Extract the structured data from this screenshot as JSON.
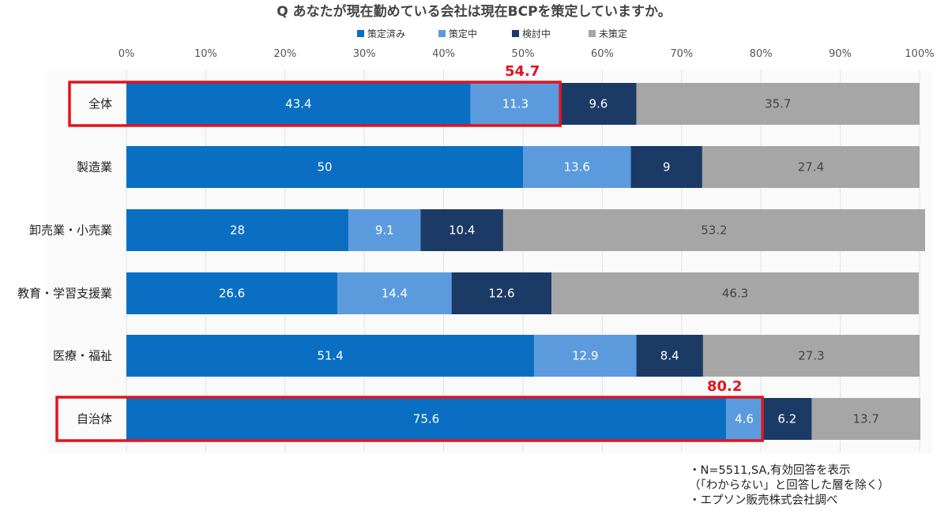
{
  "title": "Q あなたが現在勤めている会社は現在BCPを策定していますか。",
  "colors": {
    "series": [
      "#0a6fc2",
      "#5b9bdd",
      "#1b3a66",
      "#a6a6a6"
    ],
    "label_text": [
      "#ffffff",
      "#ffffff",
      "#ffffff",
      "#444444"
    ],
    "highlight": "#e0141e"
  },
  "chart_data": {
    "type": "bar",
    "orientation": "horizontal-stacked",
    "categories": [
      "全体",
      "製造業",
      "卸売業・小売業",
      "教育・学習支援業",
      "医療・福祉",
      "自治体"
    ],
    "series": [
      {
        "name": "策定済み",
        "values": [
          43.4,
          50,
          28,
          26.6,
          51.4,
          75.6
        ]
      },
      {
        "name": "策定中",
        "values": [
          11.3,
          13.6,
          9.1,
          14.4,
          12.9,
          4.6
        ]
      },
      {
        "name": "検討中",
        "values": [
          9.6,
          9,
          10.4,
          12.6,
          8.4,
          6.2
        ]
      },
      {
        "name": "未策定",
        "values": [
          35.7,
          27.4,
          53.2,
          46.3,
          27.3,
          13.7
        ]
      }
    ],
    "x_ticks": [
      "0%",
      "10%",
      "20%",
      "30%",
      "40%",
      "50%",
      "60%",
      "70%",
      "80%",
      "90%",
      "100%"
    ],
    "xlim": [
      0,
      100
    ],
    "grid": true,
    "legend_position": "top",
    "highlights": [
      {
        "category_index": 0,
        "label": "54.7",
        "value": 54.7
      },
      {
        "category_index": 5,
        "label": "80.2",
        "value": 80.2
      }
    ]
  },
  "notes": [
    "・N=5511,SA,有効回答を表示",
    "（「わからない」と回答した層を除く）",
    "・エプソン販売株式会社調べ"
  ]
}
